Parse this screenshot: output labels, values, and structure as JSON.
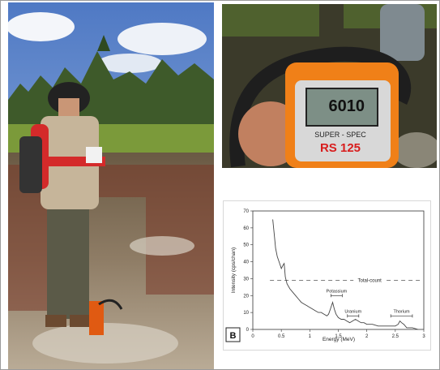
{
  "device": {
    "display_reading": "6010",
    "model_label": "SUPER - SPEC",
    "model_number": "RS 125"
  },
  "chart_data": {
    "type": "line",
    "panel_label": "B",
    "xlabel": "Energy (MeV)",
    "ylabel": "Intensity (cps/chan)",
    "xlim": [
      0,
      3
    ],
    "ylim": [
      0,
      70
    ],
    "x_ticks": [
      "0",
      "0.5",
      "1",
      "1.5",
      "2",
      "2.5",
      "3"
    ],
    "y_ticks": [
      "0",
      "10",
      "20",
      "30",
      "40",
      "50",
      "60",
      "70"
    ],
    "series": [
      {
        "x": [
          0.35,
          0.38,
          0.4,
          0.43,
          0.46,
          0.5,
          0.53,
          0.55,
          0.57,
          0.6,
          0.65,
          0.7,
          0.75,
          0.8,
          0.85,
          0.9,
          0.95,
          1.0,
          1.05,
          1.1,
          1.15,
          1.2,
          1.25,
          1.3,
          1.33,
          1.36,
          1.4,
          1.43,
          1.46,
          1.5,
          1.55,
          1.6,
          1.65,
          1.7,
          1.75,
          1.8,
          1.85,
          1.9,
          1.95,
          2.0,
          2.1,
          2.2,
          2.3,
          2.4,
          2.5,
          2.55,
          2.58,
          2.61,
          2.65,
          2.7,
          2.8,
          2.9
        ],
        "y": [
          65,
          55,
          48,
          43,
          40,
          36,
          38,
          39,
          31,
          27,
          24,
          22,
          20,
          18,
          16,
          15,
          14,
          13,
          12,
          11,
          10,
          10,
          9,
          8,
          9,
          12,
          16,
          12,
          9,
          7,
          6,
          6,
          5,
          4,
          5,
          6,
          5,
          4,
          4,
          3,
          3,
          2,
          2,
          2,
          2,
          3,
          5,
          4,
          3,
          1,
          1,
          0
        ]
      }
    ],
    "annotations": [
      {
        "label": "Total-count",
        "x_range": [
          0.3,
          2.95
        ],
        "y": 29
      },
      {
        "label": "Potassium",
        "x_range": [
          1.37,
          1.57
        ],
        "y": 20
      },
      {
        "label": "Uranium",
        "x_range": [
          1.66,
          1.86
        ],
        "y": 8
      },
      {
        "label": "Thorium",
        "x_range": [
          2.42,
          2.8
        ],
        "y": 8
      }
    ]
  }
}
